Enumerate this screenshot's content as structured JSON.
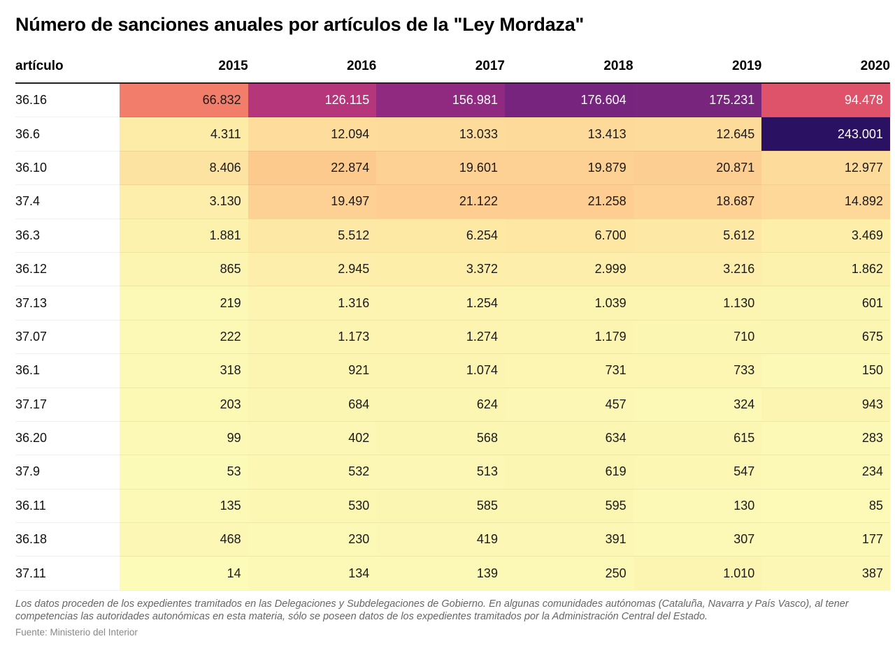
{
  "title": "Número de sanciones anuales por artículos de la \"Ley Mordaza\"",
  "note": "Los datos proceden de los expedientes tramitados en las Delegaciones y Subdelegaciones de Gobierno. En algunas comunidades autónomas (Cataluña, Navarra y País Vasco), al tener competencias las autoridades autonómicas en esta materia, sólo se poseen datos de los expedientes tramitados por la Administración Central del Estado.",
  "source": "Fuente: Ministerio del Interior",
  "colors": {
    "scale": [
      "#fcfbb8",
      "#fde8a4",
      "#fdd093",
      "#fbae7a",
      "#f5846a",
      "#e25568",
      "#b9377a",
      "#8c2981",
      "#5a1e7a",
      "#2a1161"
    ],
    "text_dark": "#1a1a1a",
    "text_light": "#ffffff"
  },
  "chart_data": {
    "type": "heatmap",
    "title": "Número de sanciones anuales por artículos de la \"Ley Mordaza\"",
    "row_header": "artículo",
    "columns": [
      "2015",
      "2016",
      "2017",
      "2018",
      "2019",
      "2020"
    ],
    "rows": [
      {
        "label": "36.16",
        "values": [
          66832,
          126115,
          156981,
          176604,
          175231,
          94478
        ],
        "display": [
          "66.832",
          "126.115",
          "156.981",
          "176.604",
          "175.231",
          "94.478"
        ]
      },
      {
        "label": "36.6",
        "values": [
          4311,
          12094,
          13033,
          13413,
          12645,
          243001
        ],
        "display": [
          "4.311",
          "12.094",
          "13.033",
          "13.413",
          "12.645",
          "243.001"
        ]
      },
      {
        "label": "36.10",
        "values": [
          8406,
          22874,
          19601,
          19879,
          20871,
          12977
        ],
        "display": [
          "8.406",
          "22.874",
          "19.601",
          "19.879",
          "20.871",
          "12.977"
        ]
      },
      {
        "label": "37.4",
        "values": [
          3130,
          19497,
          21122,
          21258,
          18687,
          14892
        ],
        "display": [
          "3.130",
          "19.497",
          "21.122",
          "21.258",
          "18.687",
          "14.892"
        ]
      },
      {
        "label": "36.3",
        "values": [
          1881,
          5512,
          6254,
          6700,
          5612,
          3469
        ],
        "display": [
          "1.881",
          "5.512",
          "6.254",
          "6.700",
          "5.612",
          "3.469"
        ]
      },
      {
        "label": "36.12",
        "values": [
          865,
          2945,
          3372,
          2999,
          3216,
          1862
        ],
        "display": [
          "865",
          "2.945",
          "3.372",
          "2.999",
          "3.216",
          "1.862"
        ]
      },
      {
        "label": "37.13",
        "values": [
          219,
          1316,
          1254,
          1039,
          1130,
          601
        ],
        "display": [
          "219",
          "1.316",
          "1.254",
          "1.039",
          "1.130",
          "601"
        ]
      },
      {
        "label": "37.07",
        "values": [
          222,
          1173,
          1274,
          1179,
          710,
          675
        ],
        "display": [
          "222",
          "1.173",
          "1.274",
          "1.179",
          "710",
          "675"
        ]
      },
      {
        "label": "36.1",
        "values": [
          318,
          921,
          1074,
          731,
          733,
          150
        ],
        "display": [
          "318",
          "921",
          "1.074",
          "731",
          "733",
          "150"
        ]
      },
      {
        "label": "37.17",
        "values": [
          203,
          684,
          624,
          457,
          324,
          943
        ],
        "display": [
          "203",
          "684",
          "624",
          "457",
          "324",
          "943"
        ]
      },
      {
        "label": "36.20",
        "values": [
          99,
          402,
          568,
          634,
          615,
          283
        ],
        "display": [
          "99",
          "402",
          "568",
          "634",
          "615",
          "283"
        ]
      },
      {
        "label": "37.9",
        "values": [
          53,
          532,
          513,
          619,
          547,
          234
        ],
        "display": [
          "53",
          "532",
          "513",
          "619",
          "547",
          "234"
        ]
      },
      {
        "label": "36.11",
        "values": [
          135,
          530,
          585,
          595,
          130,
          85
        ],
        "display": [
          "135",
          "530",
          "585",
          "595",
          "130",
          "85"
        ]
      },
      {
        "label": "36.18",
        "values": [
          468,
          230,
          419,
          391,
          307,
          177
        ],
        "display": [
          "468",
          "230",
          "419",
          "391",
          "307",
          "177"
        ]
      },
      {
        "label": "37.11",
        "values": [
          14,
          134,
          139,
          250,
          1010,
          387
        ],
        "display": [
          "14",
          "134",
          "139",
          "250",
          "1.010",
          "387"
        ]
      }
    ],
    "value_range": [
      14,
      243001
    ]
  }
}
